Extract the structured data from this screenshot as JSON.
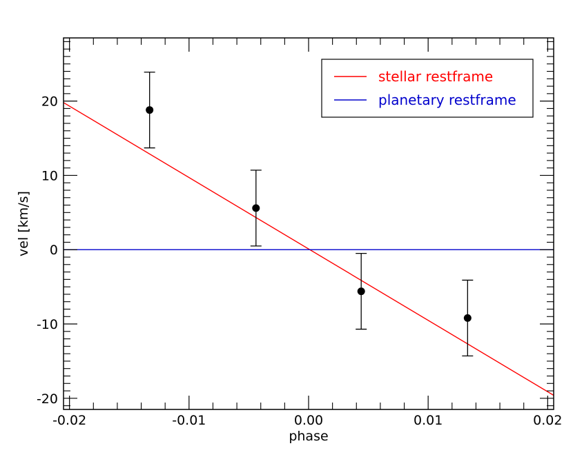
{
  "chart_data": {
    "type": "scatter",
    "title": "",
    "xlabel": "phase",
    "ylabel": "vel [km/s]",
    "xlim": [
      -0.0205,
      0.0205
    ],
    "ylim": [
      -21.5,
      28.5
    ],
    "x_ticks": [
      -0.02,
      -0.01,
      0.0,
      0.01,
      0.02
    ],
    "x_tick_labels": [
      "-0.02",
      "-0.01",
      "0.00",
      "0.01",
      "0.02"
    ],
    "y_ticks": [
      -20,
      -10,
      0,
      10,
      20
    ],
    "y_tick_labels": [
      "-20",
      "-10",
      "0",
      "10",
      "20"
    ],
    "grid": false,
    "legend_position": "top-right",
    "points": [
      {
        "x": -0.0133,
        "y": 18.8,
        "err": 5.1
      },
      {
        "x": -0.0044,
        "y": 5.6,
        "err": 5.1
      },
      {
        "x": 0.0044,
        "y": -5.6,
        "err": 5.1
      },
      {
        "x": 0.0133,
        "y": -9.2,
        "err": 5.1
      }
    ],
    "series": [
      {
        "name": "stellar restframe",
        "color": "#ff0000",
        "x": [
          -0.0205,
          0.0205
        ],
        "y": [
          19.8,
          -19.6
        ]
      },
      {
        "name": "planetary restframe",
        "color": "#0000cc",
        "x": [
          -0.0205,
          0.0205
        ],
        "y": [
          0,
          0
        ]
      }
    ]
  }
}
